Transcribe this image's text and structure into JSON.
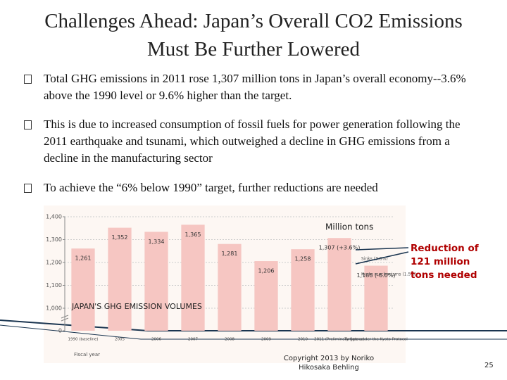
{
  "title": "Challenges Ahead: Japan’s Overall CO2 Emissions Must Be Further Lowered",
  "bullets": [
    "Total GHG emissions in 2011 rose 1,307 million tons in Japan’s overall economy--3.6% above the 1990 level or 9.6% higher than the target.",
    "This is due to increased consumption of fossil fuels for power generation following the 2011 earthquake and tsunami, which outweighed a decline in GHG emissions from a decline in the manufacturing sector",
    "To achieve the “6% below 1990” target, further reductions are needed"
  ],
  "chart_data": {
    "type": "bar",
    "title": "JAPAN'S GHG EMISSION VOLUMES",
    "y_label": "Million tons",
    "x_label": "Fiscal year",
    "categories": [
      "1990 (baseline)",
      "2005",
      "2006",
      "2007",
      "2008",
      "2009",
      "2010",
      "2011 (Preliminary figures)",
      "Targets under the Kyoto Protocol"
    ],
    "values": [
      1261,
      1352,
      1334,
      1365,
      1281,
      1206,
      1258,
      1307,
      1186
    ],
    "value_labels": [
      "1,261",
      "1,352",
      "1,334",
      "1,365",
      "1,281",
      "1,206",
      "1,258",
      "1,307 (+3.6%)",
      "1,186 (-6.0%)"
    ],
    "color": "#f6c6c2",
    "ylim": [
      0,
      1400
    ],
    "yticks": [
      0,
      {
        "value": 1000,
        "label": "1,000"
      },
      {
        "value": 1100,
        "label": "1,100"
      },
      {
        "value": 1200,
        "label": "1,200"
      },
      {
        "value": 1300,
        "label": "1,300"
      },
      {
        "value": 1400,
        "label": "1,400"
      }
    ],
    "grid": true,
    "notes": [
      "Sinks (3.8%)",
      "Kyoto mechanisms (1.5%)"
    ],
    "annotation": "Reduction of 121 million tons needed"
  },
  "footer": {
    "copyright": "Copyright 2013 by Noriko Hikosaka Behling",
    "page": "25"
  }
}
